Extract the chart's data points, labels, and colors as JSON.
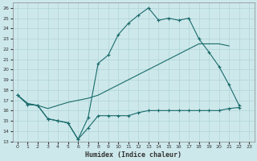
{
  "xlabel": "Humidex (Indice chaleur)",
  "bg_color": "#cde8eb",
  "grid_color": "#b0d4d8",
  "line_color": "#1a6b6b",
  "xlim": [
    -0.5,
    23.5
  ],
  "ylim": [
    13,
    26.5
  ],
  "xticks": [
    0,
    1,
    2,
    3,
    4,
    5,
    6,
    7,
    8,
    9,
    10,
    11,
    12,
    13,
    14,
    15,
    16,
    17,
    18,
    19,
    20,
    21,
    22,
    23
  ],
  "yticks": [
    13,
    14,
    15,
    16,
    17,
    18,
    19,
    20,
    21,
    22,
    23,
    24,
    25,
    26
  ],
  "line1_x": [
    0,
    1,
    2,
    3,
    4,
    5,
    6,
    7,
    8,
    9,
    10,
    11,
    12,
    13,
    14,
    15,
    16,
    17,
    18,
    19,
    20,
    21,
    22
  ],
  "line1_y": [
    17.5,
    16.6,
    16.5,
    15.2,
    15.0,
    14.8,
    13.2,
    15.3,
    20.6,
    21.4,
    23.4,
    24.5,
    25.3,
    26.0,
    24.8,
    25.0,
    24.8,
    25.0,
    23.0,
    21.7,
    20.3,
    18.5,
    16.5
  ],
  "line2_x": [
    0,
    1,
    2,
    3,
    4,
    5,
    6,
    7,
    8,
    9,
    10,
    11,
    12,
    13,
    14,
    15,
    16,
    17,
    18,
    19,
    20,
    21,
    22
  ],
  "line2_y": [
    17.5,
    16.6,
    16.5,
    15.2,
    15.0,
    14.8,
    13.2,
    14.3,
    15.5,
    15.5,
    15.5,
    15.5,
    15.8,
    16.0,
    16.0,
    16.0,
    16.0,
    16.0,
    16.0,
    16.0,
    16.0,
    16.2,
    16.3
  ],
  "line3_x": [
    0,
    1,
    2,
    3,
    4,
    5,
    6,
    7,
    8,
    9,
    10,
    11,
    12,
    13,
    14,
    15,
    16,
    17,
    18,
    19,
    20,
    21
  ],
  "line3_y": [
    17.5,
    16.7,
    16.5,
    16.2,
    16.5,
    16.8,
    17.0,
    17.2,
    17.5,
    18.0,
    18.5,
    19.0,
    19.5,
    20.0,
    20.5,
    21.0,
    21.5,
    22.0,
    22.5,
    22.5,
    22.5,
    22.3
  ]
}
